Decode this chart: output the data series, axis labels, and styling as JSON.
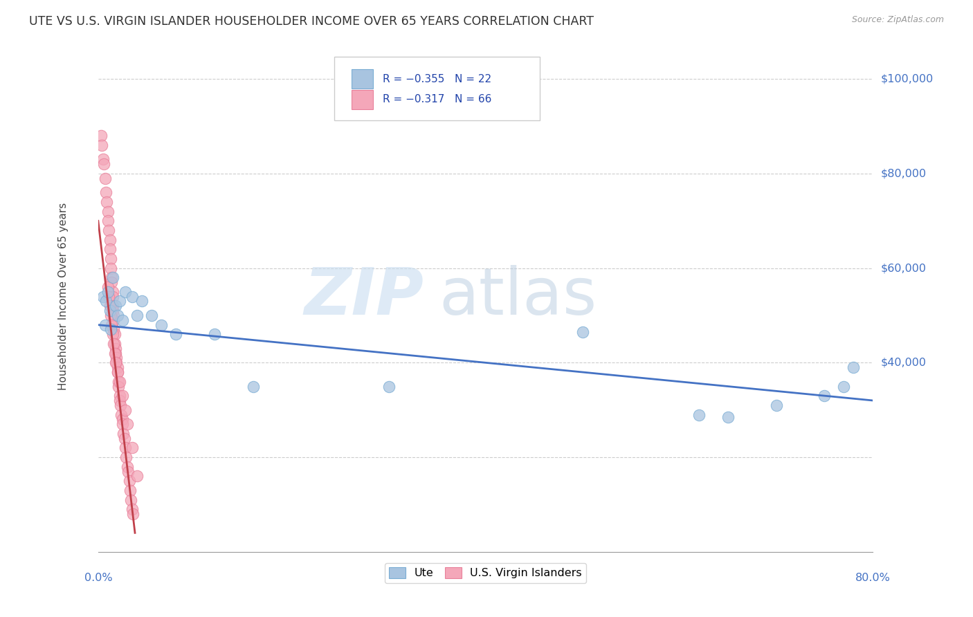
{
  "title": "UTE VS U.S. VIRGIN ISLANDER HOUSEHOLDER INCOME OVER 65 YEARS CORRELATION CHART",
  "source": "Source: ZipAtlas.com",
  "ylabel": "Householder Income Over 65 years",
  "xlim": [
    0.0,
    0.8
  ],
  "ylim": [
    0,
    108000
  ],
  "y_ticks": [
    40000,
    60000,
    80000,
    100000
  ],
  "y_labels": [
    "$40,000",
    "$60,000",
    "$80,000",
    "$100,000"
  ],
  "legend_text_ute": "R = −0.355   N = 22",
  "legend_text_vi": "R = −0.317   N = 66",
  "ute_color": "#a8c4e0",
  "ute_edge_color": "#7aadd4",
  "vi_color": "#f4a7b9",
  "vi_edge_color": "#e8809a",
  "ute_line_color": "#4472c4",
  "vi_line_color": "#c0404a",
  "watermark_zip": "ZIP",
  "watermark_atlas": "atlas",
  "ute_x": [
    0.005,
    0.007,
    0.008,
    0.01,
    0.012,
    0.013,
    0.015,
    0.018,
    0.02,
    0.022,
    0.025,
    0.028,
    0.035,
    0.04,
    0.045,
    0.055,
    0.065,
    0.08,
    0.12,
    0.16,
    0.3,
    0.5
  ],
  "ute_y": [
    54000,
    48000,
    53000,
    55000,
    51000,
    47000,
    58000,
    52000,
    50000,
    53000,
    49000,
    55000,
    54000,
    50000,
    53000,
    50000,
    48000,
    46000,
    46000,
    35000,
    35000,
    46500
  ],
  "ute_x2": [
    0.62,
    0.65,
    0.7,
    0.75,
    0.77,
    0.78
  ],
  "ute_y2": [
    29000,
    28500,
    31000,
    33000,
    35000,
    39000
  ],
  "vi_x": [
    0.003,
    0.004,
    0.005,
    0.006,
    0.007,
    0.008,
    0.009,
    0.01,
    0.01,
    0.011,
    0.012,
    0.012,
    0.013,
    0.013,
    0.014,
    0.014,
    0.015,
    0.015,
    0.015,
    0.015,
    0.016,
    0.016,
    0.016,
    0.017,
    0.017,
    0.018,
    0.018,
    0.019,
    0.019,
    0.02,
    0.02,
    0.021,
    0.021,
    0.022,
    0.022,
    0.023,
    0.024,
    0.025,
    0.025,
    0.026,
    0.027,
    0.028,
    0.029,
    0.03,
    0.031,
    0.032,
    0.033,
    0.034,
    0.035,
    0.036,
    0.01,
    0.011,
    0.012,
    0.013,
    0.014,
    0.015,
    0.016,
    0.017,
    0.018,
    0.02,
    0.022,
    0.025,
    0.028,
    0.03,
    0.035,
    0.04
  ],
  "vi_y": [
    88000,
    86000,
    83000,
    82000,
    79000,
    76000,
    74000,
    72000,
    70000,
    68000,
    66000,
    64000,
    62000,
    60000,
    58000,
    57000,
    55000,
    54000,
    52000,
    51000,
    50000,
    49000,
    47000,
    46000,
    44000,
    43000,
    42000,
    41000,
    40000,
    39000,
    38000,
    36000,
    35000,
    33000,
    32000,
    31000,
    29000,
    28000,
    27000,
    25000,
    24000,
    22000,
    20000,
    18000,
    17000,
    15000,
    13000,
    11000,
    9000,
    8000,
    56000,
    54000,
    52000,
    50000,
    48000,
    46000,
    44000,
    42000,
    40000,
    38000,
    36000,
    33000,
    30000,
    27000,
    22000,
    16000
  ]
}
